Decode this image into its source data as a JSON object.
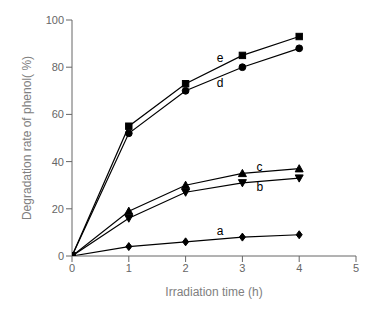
{
  "chart_data": {
    "type": "line",
    "x": [
      0,
      1,
      2,
      3,
      4
    ],
    "series": [
      {
        "values": [
          0,
          4,
          6,
          8,
          9
        ],
        "marker": "diamond",
        "color": "#000000"
      },
      {
        "values": [
          0,
          16,
          27,
          31,
          33
        ],
        "marker": "triangle-down",
        "color": "#000000"
      },
      {
        "values": [
          0,
          19,
          30,
          35,
          37
        ],
        "marker": "triangle-up",
        "color": "#000000"
      },
      {
        "values": [
          0,
          52,
          70,
          80,
          88
        ],
        "marker": "circle",
        "color": "#000000"
      },
      {
        "values": [
          0,
          55,
          73,
          85,
          93
        ],
        "marker": "square",
        "color": "#000000"
      }
    ],
    "xlabel": "Irradiation time (h)",
    "ylabel": "Degradation rate of phenol( %)",
    "xlim": [
      0,
      5
    ],
    "ylim": [
      0,
      100
    ],
    "xticks": [
      0,
      1,
      2,
      3,
      4,
      5
    ],
    "yticks": [
      0,
      20,
      40,
      60,
      80,
      100
    ],
    "grid": false,
    "annotations": [
      {
        "text": "a",
        "x": 2.55,
        "y": 10.5
      },
      {
        "text": "b",
        "x": 3.25,
        "y": 29.5
      },
      {
        "text": "c",
        "x": 3.25,
        "y": 38.0
      },
      {
        "text": "d",
        "x": 2.55,
        "y": 73.5
      },
      {
        "text": "e",
        "x": 2.55,
        "y": 84.0
      }
    ]
  }
}
